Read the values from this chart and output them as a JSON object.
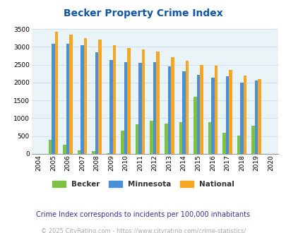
{
  "title": "Becker Property Crime Index",
  "years": [
    "2004",
    "2005",
    "2006",
    "2007",
    "2008",
    "2009",
    "2010",
    "2011",
    "2012",
    "2013",
    "2014",
    "2015",
    "2016",
    "2017",
    "2018",
    "2019",
    "2020"
  ],
  "becker": [
    0,
    400,
    260,
    90,
    80,
    20,
    650,
    820,
    930,
    840,
    880,
    1600,
    880,
    600,
    510,
    790,
    0
  ],
  "minnesota": [
    0,
    3080,
    3080,
    3040,
    2850,
    2630,
    2570,
    2560,
    2570,
    2460,
    2310,
    2220,
    2140,
    2180,
    2000,
    2060,
    0
  ],
  "national": [
    0,
    3420,
    3340,
    3250,
    3200,
    3050,
    2960,
    2930,
    2880,
    2720,
    2620,
    2500,
    2470,
    2360,
    2200,
    2100,
    0
  ],
  "bar_width": 0.22,
  "becker_color": "#7DC242",
  "minnesota_color": "#4A90D9",
  "national_color": "#F5A623",
  "bg_color": "#E8F4F8",
  "ylim": [
    0,
    3500
  ],
  "yticks": [
    0,
    500,
    1000,
    1500,
    2000,
    2500,
    3000,
    3500
  ],
  "title_color": "#1155AA",
  "title_fontsize": 10,
  "subtitle": "Crime Index corresponds to incidents per 100,000 inhabitants",
  "subtitle_color": "#333399",
  "subtitle_fontsize": 7,
  "footer": "© 2025 CityRating.com - https://www.cityrating.com/crime-statistics/",
  "footer_color": "#aaaaaa",
  "footer_fontsize": 6,
  "legend_labels": [
    "Becker",
    "Minnesota",
    "National"
  ],
  "tick_fontsize": 6.5,
  "grid_color": "#CCDDEE"
}
